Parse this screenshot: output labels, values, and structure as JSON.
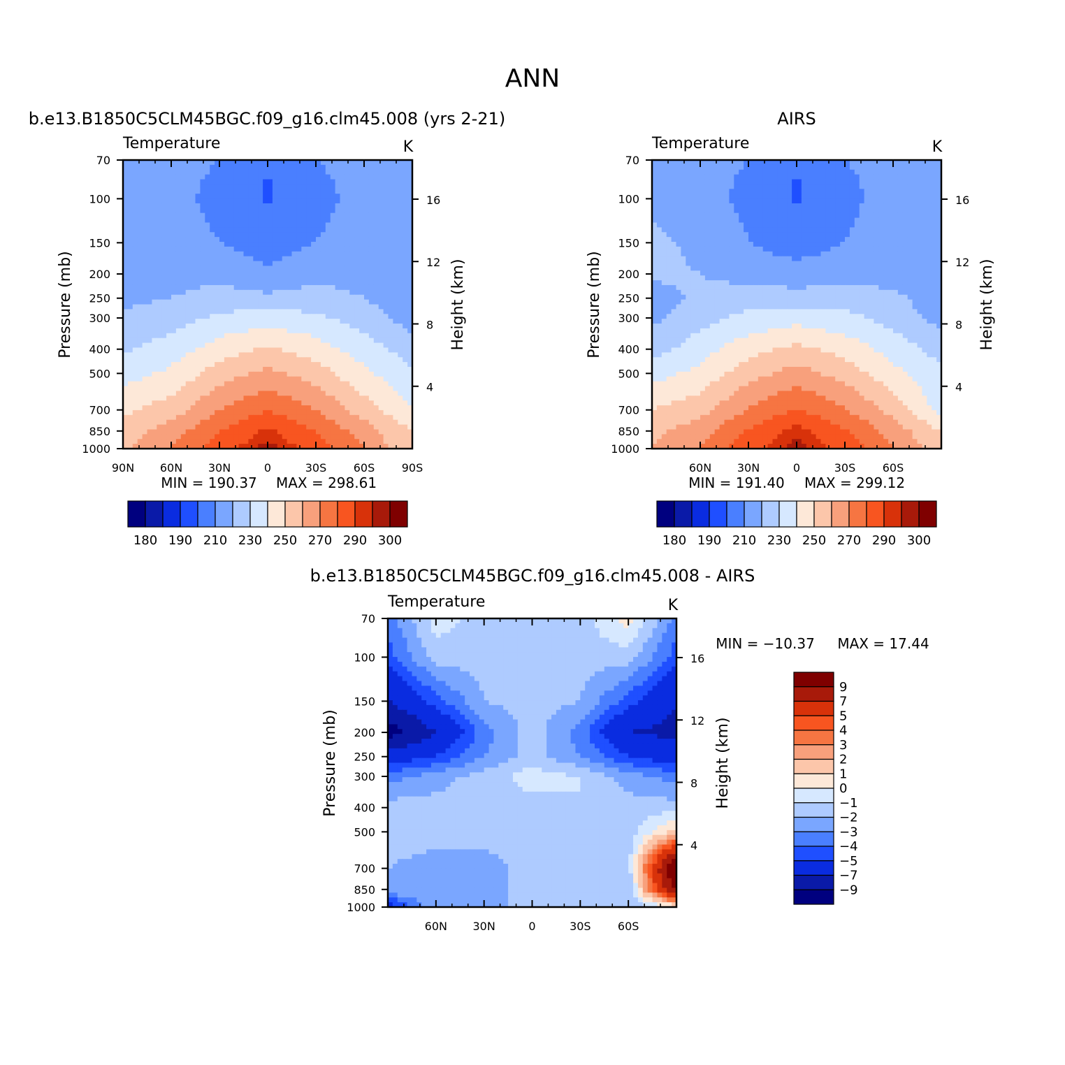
{
  "page": {
    "title": "ANN"
  },
  "chart_data": [
    {
      "type": "heatmap",
      "title": "b.e13.B1850C5CLM45BGC.f09_g16.clm45.008 (yrs 2-21)",
      "variable": "Temperature",
      "units": "K",
      "ylabel": "Pressure (mb)",
      "ylabel_right": "Height (km)",
      "xlabel": "",
      "x_tick_labels": [
        "90N",
        "60N",
        "30N",
        "0",
        "30S",
        "60S",
        "90S"
      ],
      "y_tick_labels": [
        "70",
        "100",
        "150",
        "200",
        "250",
        "300",
        "400",
        "500",
        "700",
        "850",
        "1000"
      ],
      "y_right_tick_labels": [
        "16",
        "12",
        "8",
        "4"
      ],
      "x": [
        90,
        60,
        30,
        0,
        -30,
        -60,
        -90
      ],
      "pressure_levels": [
        70,
        100,
        150,
        200,
        250,
        300,
        400,
        500,
        700,
        850,
        1000
      ],
      "min_label": "MIN = 190.37",
      "max_label": "MAX = 298.61",
      "colorbar_levels": [
        180,
        185,
        190,
        200,
        210,
        220,
        230,
        240,
        250,
        260,
        270,
        280,
        290,
        295,
        300
      ],
      "colorbar_tick_labels": [
        "180",
        "190",
        "210",
        "230",
        "250",
        "270",
        "290",
        "300"
      ],
      "values_k": [
        [
          215,
          212,
          210,
          200,
          210,
          212,
          215
        ],
        [
          213,
          212,
          208,
          199,
          208,
          212,
          212
        ],
        [
          215,
          213,
          210,
          205,
          210,
          213,
          213
        ],
        [
          216,
          216,
          216,
          212,
          216,
          216,
          212
        ],
        [
          218,
          220,
          225,
          222,
          225,
          220,
          213
        ],
        [
          221,
          225,
          232,
          235,
          232,
          225,
          215
        ],
        [
          228,
          235,
          245,
          252,
          245,
          235,
          225
        ],
        [
          236,
          242,
          255,
          263,
          255,
          242,
          232
        ],
        [
          248,
          255,
          270,
          280,
          270,
          255,
          240
        ],
        [
          255,
          265,
          280,
          292,
          280,
          265,
          250
        ],
        [
          258,
          270,
          285,
          298,
          285,
          270,
          250
        ]
      ]
    },
    {
      "type": "heatmap",
      "title": "AIRS",
      "variable": "Temperature",
      "units": "K",
      "ylabel": "Pressure (mb)",
      "ylabel_right": "Height (km)",
      "xlabel": "",
      "x_tick_labels": [
        "60N",
        "30N",
        "0",
        "30S",
        "60S"
      ],
      "y_tick_labels": [
        "70",
        "100",
        "150",
        "200",
        "250",
        "300",
        "400",
        "500",
        "700",
        "850",
        "1000"
      ],
      "y_right_tick_labels": [
        "16",
        "12",
        "8",
        "4"
      ],
      "x": [
        90,
        60,
        30,
        0,
        -30,
        -60,
        -90
      ],
      "pressure_levels": [
        70,
        100,
        150,
        200,
        250,
        300,
        400,
        500,
        700,
        850,
        1000
      ],
      "min_label": "MIN = 191.40",
      "max_label": "MAX = 299.12",
      "colorbar_levels": [
        180,
        185,
        190,
        200,
        210,
        220,
        230,
        240,
        250,
        260,
        270,
        280,
        290,
        295,
        300
      ],
      "colorbar_tick_labels": [
        "180",
        "190",
        "210",
        "230",
        "250",
        "270",
        "290",
        "300"
      ],
      "values_k": [
        [
          215,
          212,
          210,
          200,
          210,
          212,
          215
        ],
        [
          218,
          213,
          208,
          199,
          208,
          213,
          212
        ],
        [
          222,
          218,
          210,
          205,
          210,
          214,
          214
        ],
        [
          222,
          220,
          216,
          214,
          216,
          216,
          214
        ],
        [
          216,
          222,
          226,
          224,
          226,
          222,
          215
        ],
        [
          218,
          226,
          233,
          236,
          233,
          226,
          216
        ],
        [
          225,
          236,
          246,
          253,
          246,
          236,
          226
        ],
        [
          236,
          243,
          256,
          264,
          256,
          243,
          232
        ],
        [
          250,
          256,
          271,
          281,
          271,
          256,
          236
        ],
        [
          257,
          266,
          281,
          293,
          281,
          266,
          250
        ],
        [
          260,
          271,
          286,
          299,
          286,
          271,
          252
        ]
      ]
    },
    {
      "type": "heatmap",
      "title": "b.e13.B1850C5CLM45BGC.f09_g16.clm45.008 - AIRS",
      "variable": "Temperature",
      "units": "K",
      "ylabel": "Pressure (mb)",
      "ylabel_right": "Height (km)",
      "xlabel": "",
      "x_tick_labels": [
        "60N",
        "30N",
        "0",
        "30S",
        "60S"
      ],
      "y_tick_labels": [
        "70",
        "100",
        "150",
        "200",
        "250",
        "300",
        "400",
        "500",
        "700",
        "850",
        "1000"
      ],
      "y_right_tick_labels": [
        "16",
        "12",
        "8",
        "4"
      ],
      "x": [
        90,
        60,
        30,
        0,
        -30,
        -60,
        -90
      ],
      "pressure_levels": [
        70,
        100,
        150,
        200,
        250,
        300,
        400,
        500,
        700,
        850,
        1000
      ],
      "min_label": "MIN = −10.37",
      "max_label": "MAX = 17.44",
      "colorbar_levels": [
        -9,
        -7,
        -5,
        -4,
        -3,
        -2,
        -1,
        0,
        1,
        2,
        3,
        4,
        5,
        7,
        9
      ],
      "colorbar_tick_labels": [
        "9",
        "7",
        "5",
        "4",
        "3",
        "2",
        "1",
        "0",
        "−1",
        "−2",
        "−3",
        "−4",
        "−5",
        "−7",
        "−9"
      ],
      "values_k": [
        [
          -3.5,
          -0.5,
          -1.5,
          -1.5,
          -1.5,
          0.5,
          -3.5
        ],
        [
          -4.5,
          -1.5,
          -1.5,
          -1.2,
          -1.5,
          -1.5,
          -4.5
        ],
        [
          -7.0,
          -4.5,
          -2.0,
          -1.5,
          -2.0,
          -4.5,
          -7.0
        ],
        [
          -10.0,
          -7.0,
          -3.5,
          -1.5,
          -3.5,
          -7.0,
          -7.5
        ],
        [
          -6.0,
          -5.0,
          -3.0,
          -1.5,
          -3.0,
          -5.0,
          -6.0
        ],
        [
          -3.5,
          -2.5,
          -1.5,
          -0.5,
          -1.0,
          -2.5,
          -3.5
        ],
        [
          -1.5,
          -1.5,
          -1.5,
          -1.5,
          -1.0,
          -1.5,
          -1.5
        ],
        [
          -1.5,
          -1.5,
          -1.5,
          -1.5,
          -1.5,
          -1.5,
          1.5
        ],
        [
          -2.0,
          -2.5,
          -2.5,
          -1.5,
          -1.5,
          -1.5,
          12.0
        ],
        [
          -2.0,
          -2.0,
          -2.5,
          -1.5,
          -1.5,
          -2.0,
          10.0
        ],
        [
          -6.0,
          -2.0,
          -2.0,
          -2.0,
          -1.5,
          -2.0,
          0.0
        ]
      ]
    }
  ],
  "palette": {
    "temperature": [
      "#00007f",
      "#0a1aa8",
      "#0a2ce0",
      "#1f4fff",
      "#4a7fff",
      "#7aa6ff",
      "#aecbff",
      "#d6e8ff",
      "#fde8d8",
      "#fcc6aa",
      "#f8a07c",
      "#f67542",
      "#f85520",
      "#d8320a",
      "#a81a0a",
      "#7f0000"
    ],
    "difference": [
      "#00007f",
      "#0a1aa8",
      "#0a2ce0",
      "#1f4fff",
      "#4a7fff",
      "#7aa6ff",
      "#aecbff",
      "#d6e8ff",
      "#fde8d8",
      "#fcc6aa",
      "#f8a07c",
      "#f67542",
      "#f85520",
      "#d8320a",
      "#a81a0a",
      "#7f0000"
    ]
  }
}
